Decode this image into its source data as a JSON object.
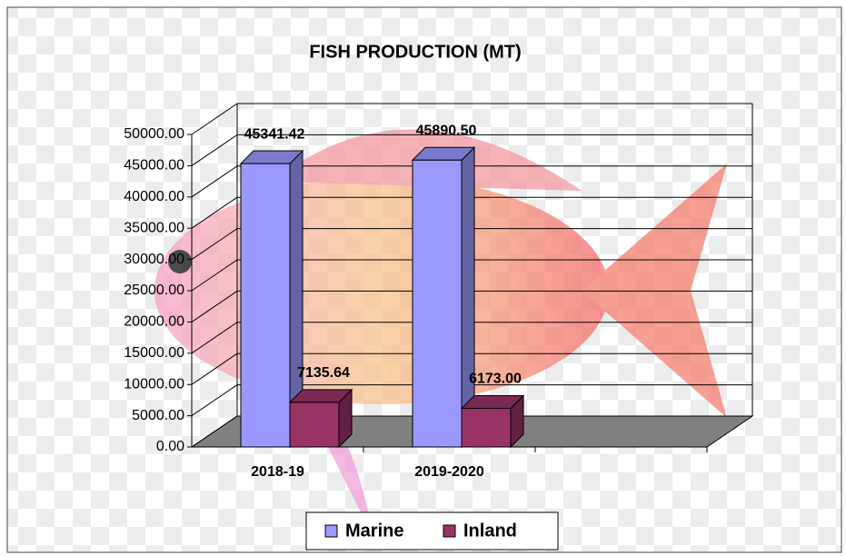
{
  "chart_data": {
    "type": "bar3d",
    "title": "FISH PRODUCTION (MT)",
    "categories": [
      "2018-19",
      "2019-2020",
      null
    ],
    "series": [
      {
        "name": "Marine",
        "color": "#9999ff",
        "values": [
          45341.42,
          45890.5,
          null
        ],
        "value_labels": [
          "45341.42",
          "45890.50",
          null
        ]
      },
      {
        "name": "Inland",
        "color": "#993366",
        "values": [
          7135.64,
          6173.0,
          null
        ],
        "value_labels": [
          "7135.64",
          "6173.00",
          null
        ]
      }
    ],
    "ylim": [
      0,
      50000
    ],
    "yticks": [
      {
        "value": 0,
        "label": "0.00"
      },
      {
        "value": 5000,
        "label": "5000.00"
      },
      {
        "value": 10000,
        "label": "10000.00"
      },
      {
        "value": 15000,
        "label": "15000.00"
      },
      {
        "value": 20000,
        "label": "20000.00"
      },
      {
        "value": 25000,
        "label": "25000.00"
      },
      {
        "value": 30000,
        "label": "30000.00"
      },
      {
        "value": 35000,
        "label": "35000.00"
      },
      {
        "value": 40000,
        "label": "40000.00"
      },
      {
        "value": 45000,
        "label": "45000.00"
      },
      {
        "value": 50000,
        "label": "50000.00"
      }
    ],
    "grid": true,
    "legend": "bottom"
  }
}
